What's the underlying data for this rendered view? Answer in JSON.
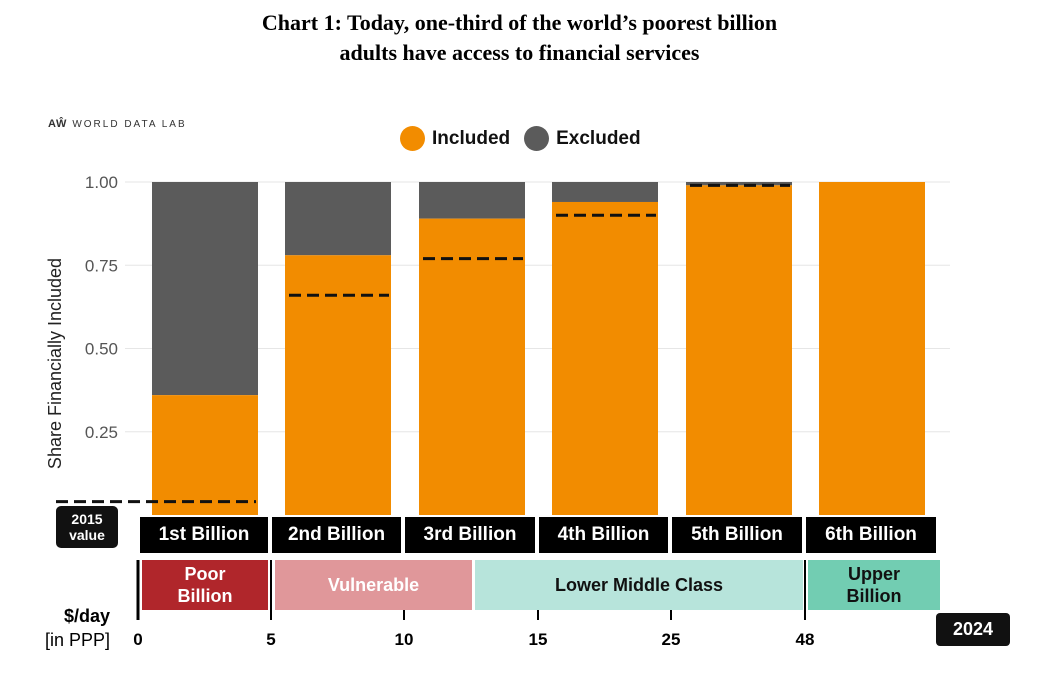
{
  "title": {
    "line1": "Chart 1: Today, one-third of the world’s poorest billion",
    "line2": "adults have access to financial services"
  },
  "brand": {
    "mark": "AŴ",
    "name": "WORLD DATA LAB"
  },
  "colors": {
    "included": "#F28C00",
    "excluded": "#5B5B5B",
    "poor": "#B0262B",
    "vulnerable": "#E0979A",
    "lower_middle": "#B7E4DB",
    "upper": "#72CDB2"
  },
  "chart_data": {
    "type": "bar",
    "stacked": true,
    "ylabel": "Share Financially Included",
    "ylim": [
      0,
      1
    ],
    "yticks": [
      "1.00",
      "0.75",
      "0.50",
      "0.25"
    ],
    "ytick_values": [
      1.0,
      0.75,
      0.5,
      0.25
    ],
    "grid": true,
    "legend_position": "top",
    "categories": [
      "1st Billion",
      "2nd Billion",
      "3rd Billion",
      "4th Billion",
      "5th Billion",
      "6th Billion"
    ],
    "series": [
      {
        "name": "Included",
        "values": [
          0.36,
          0.78,
          0.89,
          0.94,
          0.99,
          1.0
        ]
      },
      {
        "name": "Excluded",
        "values": [
          0.64,
          0.22,
          0.11,
          0.06,
          0.01,
          0.0
        ]
      }
    ],
    "reference_2015": {
      "label_line1": "2015",
      "label_line2": "value",
      "values": [
        0.04,
        0.66,
        0.77,
        0.9,
        0.99,
        null
      ]
    },
    "year_label": "2024",
    "income_axis": {
      "label_line1": "$/day",
      "label_line2": "[in PPP]",
      "ticks": [
        "0",
        "5",
        "10",
        "15",
        "25",
        "48"
      ]
    },
    "income_classes": [
      {
        "name_line1": "Poor",
        "name_line2": "Billion"
      },
      {
        "name_line1": "Vulnerable",
        "name_line2": ""
      },
      {
        "name_line1": "Lower Middle Class",
        "name_line2": ""
      },
      {
        "name_line1": "Upper",
        "name_line2": "Billion"
      }
    ]
  }
}
